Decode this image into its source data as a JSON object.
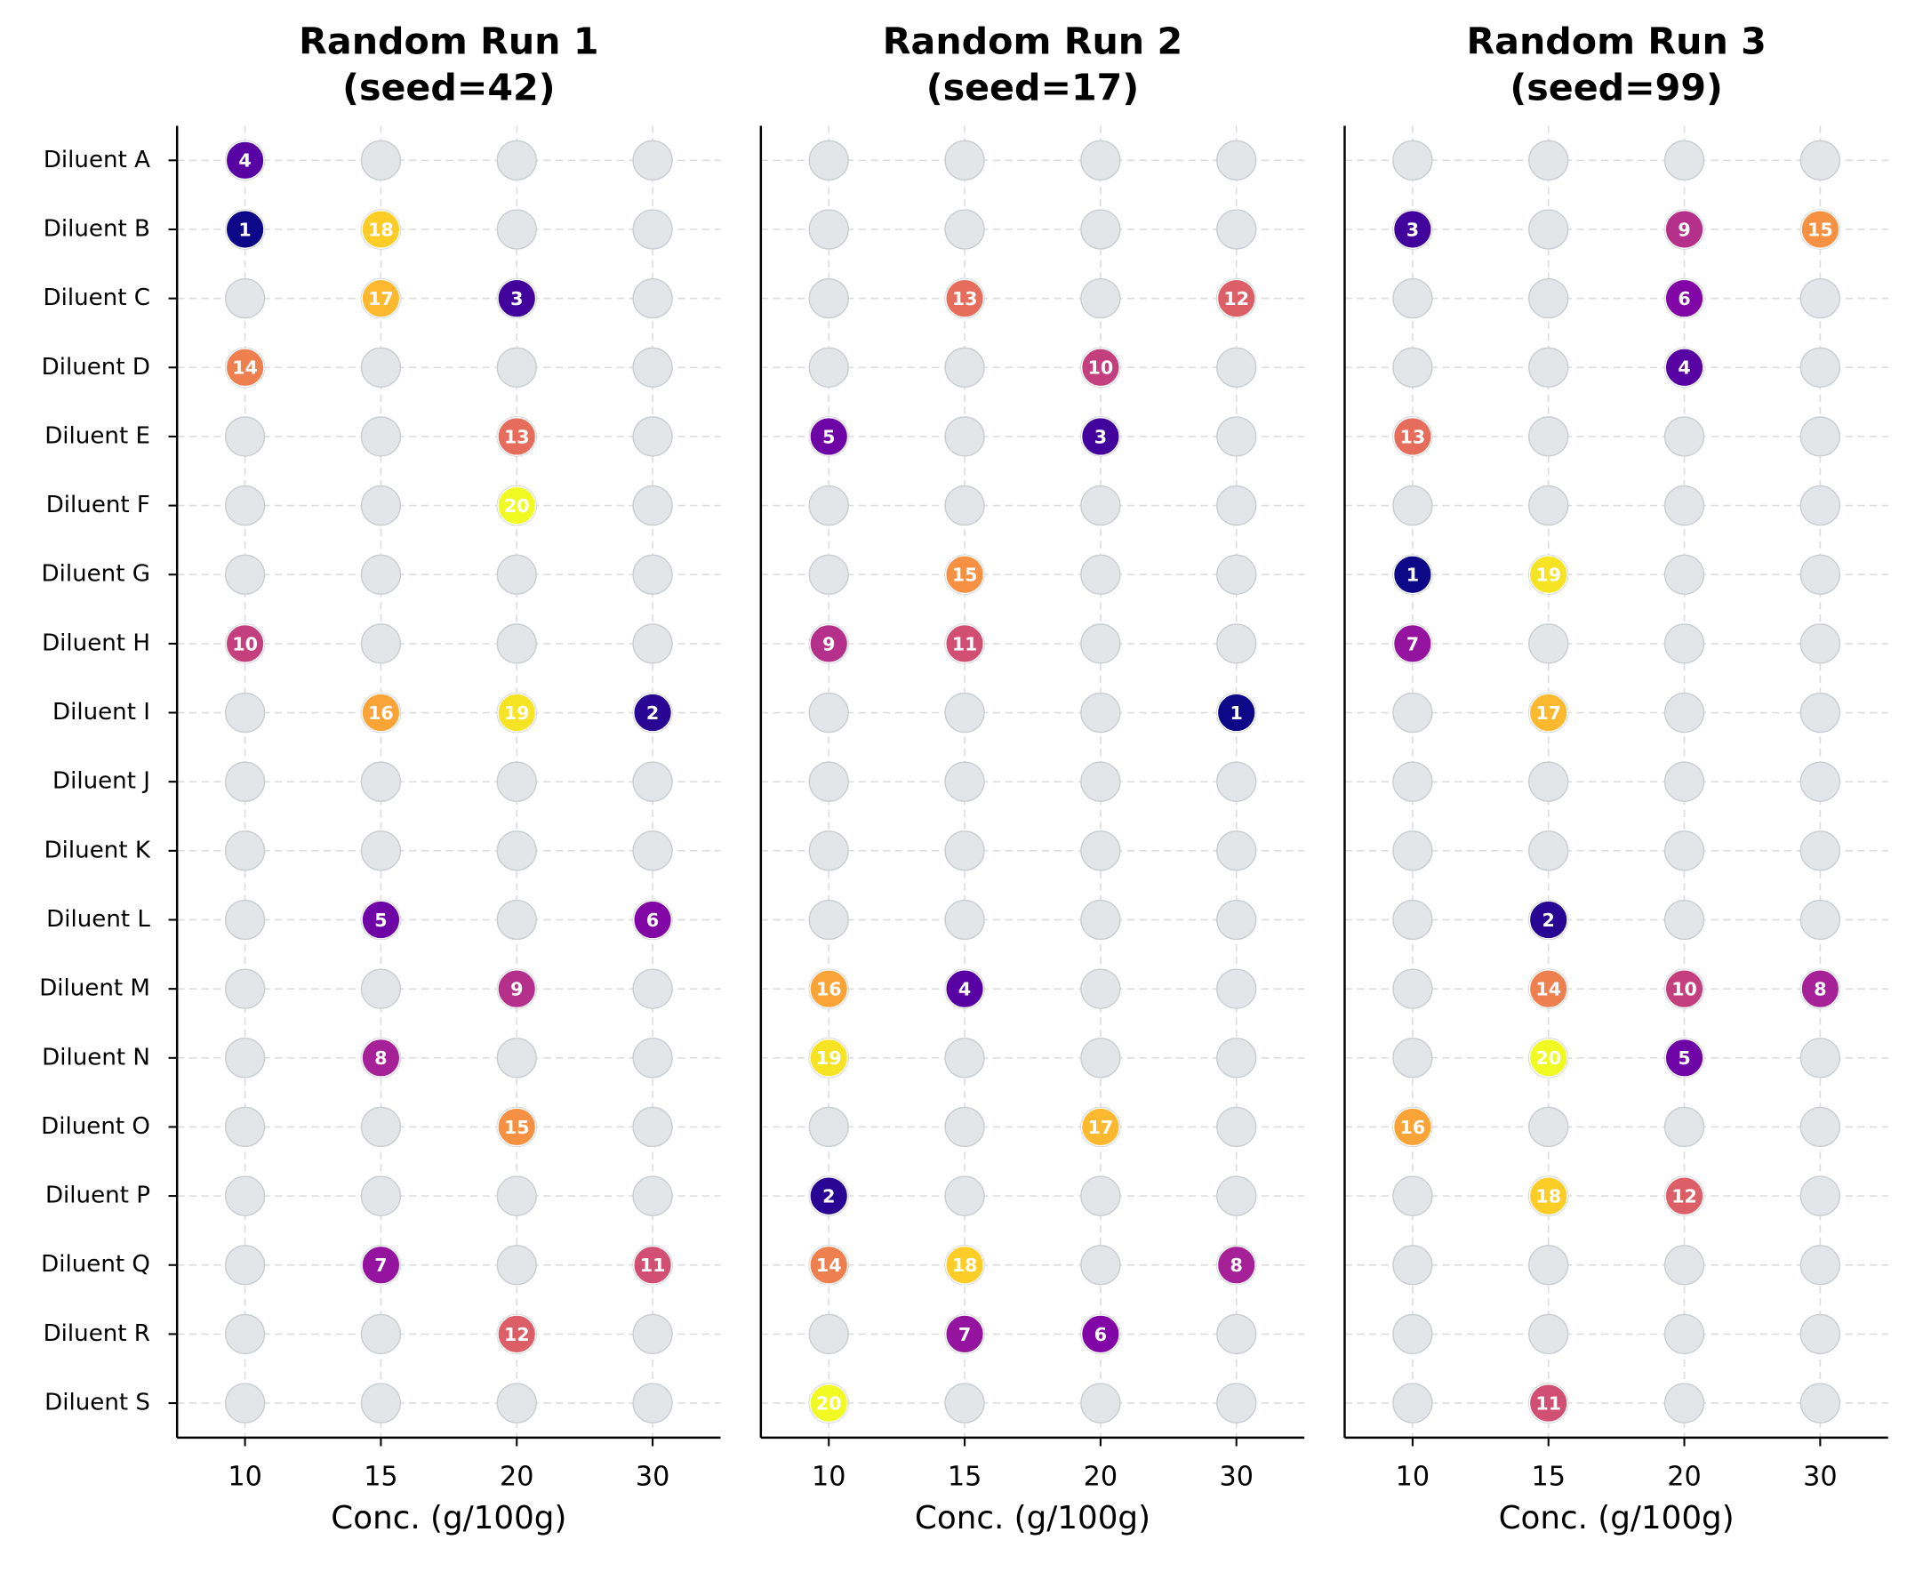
{
  "chart_data": [
    {
      "type": "scatter",
      "title": [
        "Random Run 1",
        "(seed=42)"
      ],
      "xlabel": "Conc. (g/100g)",
      "x_categories": [
        "10",
        "15",
        "20",
        "30"
      ],
      "y_categories": [
        "Diluent A",
        "Diluent B",
        "Diluent C",
        "Diluent D",
        "Diluent E",
        "Diluent F",
        "Diluent G",
        "Diluent H",
        "Diluent I",
        "Diluent J",
        "Diluent K",
        "Diluent L",
        "Diluent M",
        "Diluent N",
        "Diluent O",
        "Diluent P",
        "Diluent Q",
        "Diluent R",
        "Diluent S"
      ],
      "colormap": "plasma",
      "grid": true,
      "show_y_labels": true,
      "points": [
        {
          "x": "10",
          "y": "Diluent A",
          "value": 4
        },
        {
          "x": "10",
          "y": "Diluent B",
          "value": 1
        },
        {
          "x": "15",
          "y": "Diluent B",
          "value": 18
        },
        {
          "x": "15",
          "y": "Diluent C",
          "value": 17
        },
        {
          "x": "20",
          "y": "Diluent C",
          "value": 3
        },
        {
          "x": "10",
          "y": "Diluent D",
          "value": 14
        },
        {
          "x": "20",
          "y": "Diluent E",
          "value": 13
        },
        {
          "x": "20",
          "y": "Diluent F",
          "value": 20
        },
        {
          "x": "10",
          "y": "Diluent H",
          "value": 10
        },
        {
          "x": "15",
          "y": "Diluent I",
          "value": 16
        },
        {
          "x": "20",
          "y": "Diluent I",
          "value": 19
        },
        {
          "x": "30",
          "y": "Diluent I",
          "value": 2
        },
        {
          "x": "15",
          "y": "Diluent L",
          "value": 5
        },
        {
          "x": "30",
          "y": "Diluent L",
          "value": 6
        },
        {
          "x": "20",
          "y": "Diluent M",
          "value": 9
        },
        {
          "x": "15",
          "y": "Diluent N",
          "value": 8
        },
        {
          "x": "20",
          "y": "Diluent O",
          "value": 15
        },
        {
          "x": "15",
          "y": "Diluent Q",
          "value": 7
        },
        {
          "x": "30",
          "y": "Diluent Q",
          "value": 11
        },
        {
          "x": "20",
          "y": "Diluent R",
          "value": 12
        }
      ]
    },
    {
      "type": "scatter",
      "title": [
        "Random Run 2",
        "(seed=17)"
      ],
      "xlabel": "Conc. (g/100g)",
      "x_categories": [
        "10",
        "15",
        "20",
        "30"
      ],
      "y_categories": [
        "Diluent A",
        "Diluent B",
        "Diluent C",
        "Diluent D",
        "Diluent E",
        "Diluent F",
        "Diluent G",
        "Diluent H",
        "Diluent I",
        "Diluent J",
        "Diluent K",
        "Diluent L",
        "Diluent M",
        "Diluent N",
        "Diluent O",
        "Diluent P",
        "Diluent Q",
        "Diluent R",
        "Diluent S"
      ],
      "colormap": "plasma",
      "grid": true,
      "show_y_labels": false,
      "points": [
        {
          "x": "15",
          "y": "Diluent C",
          "value": 13
        },
        {
          "x": "30",
          "y": "Diluent C",
          "value": 12
        },
        {
          "x": "20",
          "y": "Diluent D",
          "value": 10
        },
        {
          "x": "10",
          "y": "Diluent E",
          "value": 5
        },
        {
          "x": "20",
          "y": "Diluent E",
          "value": 3
        },
        {
          "x": "15",
          "y": "Diluent G",
          "value": 15
        },
        {
          "x": "10",
          "y": "Diluent H",
          "value": 9
        },
        {
          "x": "15",
          "y": "Diluent H",
          "value": 11
        },
        {
          "x": "30",
          "y": "Diluent I",
          "value": 1
        },
        {
          "x": "10",
          "y": "Diluent M",
          "value": 16
        },
        {
          "x": "15",
          "y": "Diluent M",
          "value": 4
        },
        {
          "x": "10",
          "y": "Diluent N",
          "value": 19
        },
        {
          "x": "20",
          "y": "Diluent O",
          "value": 17
        },
        {
          "x": "10",
          "y": "Diluent P",
          "value": 2
        },
        {
          "x": "10",
          "y": "Diluent Q",
          "value": 14
        },
        {
          "x": "15",
          "y": "Diluent Q",
          "value": 18
        },
        {
          "x": "30",
          "y": "Diluent Q",
          "value": 8
        },
        {
          "x": "15",
          "y": "Diluent R",
          "value": 7
        },
        {
          "x": "20",
          "y": "Diluent R",
          "value": 6
        },
        {
          "x": "10",
          "y": "Diluent S",
          "value": 20
        }
      ]
    },
    {
      "type": "scatter",
      "title": [
        "Random Run 3",
        "(seed=99)"
      ],
      "xlabel": "Conc. (g/100g)",
      "x_categories": [
        "10",
        "15",
        "20",
        "30"
      ],
      "y_categories": [
        "Diluent A",
        "Diluent B",
        "Diluent C",
        "Diluent D",
        "Diluent E",
        "Diluent F",
        "Diluent G",
        "Diluent H",
        "Diluent I",
        "Diluent J",
        "Diluent K",
        "Diluent L",
        "Diluent M",
        "Diluent N",
        "Diluent O",
        "Diluent P",
        "Diluent Q",
        "Diluent R",
        "Diluent S"
      ],
      "colormap": "plasma",
      "grid": true,
      "show_y_labels": false,
      "points": [
        {
          "x": "10",
          "y": "Diluent B",
          "value": 3
        },
        {
          "x": "20",
          "y": "Diluent B",
          "value": 9
        },
        {
          "x": "30",
          "y": "Diluent B",
          "value": 15
        },
        {
          "x": "20",
          "y": "Diluent C",
          "value": 6
        },
        {
          "x": "20",
          "y": "Diluent D",
          "value": 4
        },
        {
          "x": "10",
          "y": "Diluent E",
          "value": 13
        },
        {
          "x": "10",
          "y": "Diluent G",
          "value": 1
        },
        {
          "x": "15",
          "y": "Diluent G",
          "value": 19
        },
        {
          "x": "10",
          "y": "Diluent H",
          "value": 7
        },
        {
          "x": "15",
          "y": "Diluent I",
          "value": 17
        },
        {
          "x": "15",
          "y": "Diluent L",
          "value": 2
        },
        {
          "x": "15",
          "y": "Diluent M",
          "value": 14
        },
        {
          "x": "20",
          "y": "Diluent M",
          "value": 10
        },
        {
          "x": "30",
          "y": "Diluent M",
          "value": 8
        },
        {
          "x": "15",
          "y": "Diluent N",
          "value": 20
        },
        {
          "x": "20",
          "y": "Diluent N",
          "value": 5
        },
        {
          "x": "10",
          "y": "Diluent O",
          "value": 16
        },
        {
          "x": "15",
          "y": "Diluent P",
          "value": 18
        },
        {
          "x": "20",
          "y": "Diluent P",
          "value": 12
        },
        {
          "x": "15",
          "y": "Diluent S",
          "value": 11
        }
      ]
    }
  ]
}
